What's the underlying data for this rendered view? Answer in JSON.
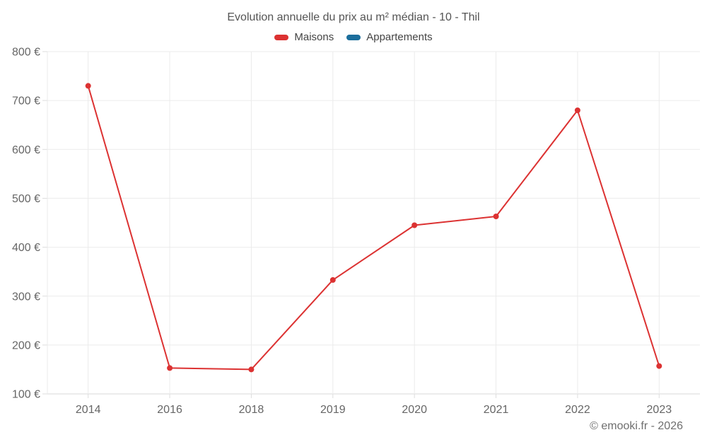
{
  "footer": {
    "credit": "© emooki.fr - 2026"
  },
  "chart_data": {
    "type": "line",
    "title": "Evolution annuelle du prix au m² médian - 10 - Thil",
    "categories": [
      "2014",
      "2016",
      "2018",
      "2019",
      "2020",
      "2021",
      "2022",
      "2023"
    ],
    "series": [
      {
        "name": "Maisons",
        "color": "#dc3232",
        "values": [
          730,
          153,
          150,
          333,
          445,
          463,
          680,
          157
        ]
      },
      {
        "name": "Appartements",
        "color": "#1c6e9c",
        "values": []
      }
    ],
    "ylim": [
      100,
      800
    ],
    "y_tick_step": 100,
    "y_tick_suffix": " €",
    "grid": true,
    "legend_position": "top",
    "colors": {
      "grid_line": "#ebebeb",
      "axis_border": "#d9d9d9",
      "tick_mark": "#dddddd",
      "axis_text": "#666666"
    }
  }
}
